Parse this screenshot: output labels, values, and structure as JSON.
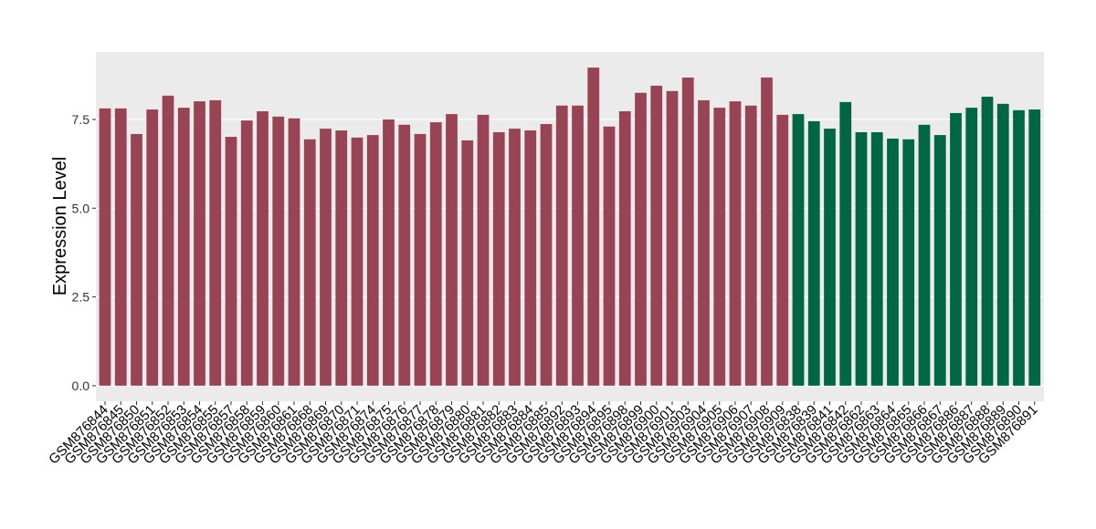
{
  "chart_data": {
    "type": "bar",
    "y_label": "Expression Level",
    "categories": [
      "GSM876844",
      "GSM876845",
      "GSM876850",
      "GSM876851",
      "GSM876852",
      "GSM876853",
      "GSM876854",
      "GSM876855",
      "GSM876857",
      "GSM876858",
      "GSM876859",
      "GSM876860",
      "GSM876861",
      "GSM876868",
      "GSM876869",
      "GSM876870",
      "GSM876871",
      "GSM876874",
      "GSM876875",
      "GSM876876",
      "GSM876877",
      "GSM876878",
      "GSM876879",
      "GSM876880",
      "GSM876881",
      "GSM876882",
      "GSM876883",
      "GSM876884",
      "GSM876885",
      "GSM876892",
      "GSM876893",
      "GSM876894",
      "GSM876895",
      "GSM876898",
      "GSM876899",
      "GSM876900",
      "GSM876901",
      "GSM876903",
      "GSM876904",
      "GSM876905",
      "GSM876906",
      "GSM876907",
      "GSM876908",
      "GSM876909",
      "GSM876838",
      "GSM876839",
      "GSM876841",
      "GSM876842",
      "GSM876862",
      "GSM876863",
      "GSM876864",
      "GSM876865",
      "GSM876866",
      "GSM876867",
      "GSM876886",
      "GSM876887",
      "GSM876888",
      "GSM876889",
      "GSM876890",
      "GSM876891"
    ],
    "values": [
      7.81,
      7.81,
      7.09,
      7.78,
      8.17,
      7.83,
      8.01,
      8.04,
      7.01,
      7.47,
      7.73,
      7.58,
      7.53,
      6.94,
      7.24,
      7.19,
      6.99,
      7.06,
      7.5,
      7.35,
      7.09,
      7.42,
      7.65,
      6.91,
      7.63,
      7.14,
      7.24,
      7.19,
      7.37,
      7.89,
      7.89,
      8.96,
      7.3,
      7.73,
      8.25,
      8.45,
      8.3,
      8.68,
      8.04,
      7.83,
      8.01,
      7.89,
      8.68,
      7.63,
      7.65,
      7.45,
      7.24,
      7.99,
      7.14,
      7.14,
      6.96,
      6.94,
      7.35,
      7.06,
      7.68,
      7.83,
      8.14,
      7.94,
      7.76,
      7.78
    ],
    "colors": [
      "#994455",
      "#994455",
      "#994455",
      "#994455",
      "#994455",
      "#994455",
      "#994455",
      "#994455",
      "#994455",
      "#994455",
      "#994455",
      "#994455",
      "#994455",
      "#994455",
      "#994455",
      "#994455",
      "#994455",
      "#994455",
      "#994455",
      "#994455",
      "#994455",
      "#994455",
      "#994455",
      "#994455",
      "#994455",
      "#994455",
      "#994455",
      "#994455",
      "#994455",
      "#994455",
      "#994455",
      "#994455",
      "#994455",
      "#994455",
      "#994455",
      "#994455",
      "#994455",
      "#994455",
      "#994455",
      "#994455",
      "#994455",
      "#994455",
      "#994455",
      "#994455",
      "#006644",
      "#006644",
      "#006644",
      "#006644",
      "#006644",
      "#006644",
      "#006644",
      "#006644",
      "#006644",
      "#006644",
      "#006644",
      "#006644",
      "#006644",
      "#006644",
      "#006644",
      "#006644"
    ],
    "ylim": [
      -0.44,
      9.4
    ],
    "yticks": [
      {
        "value": 0,
        "label": "0.0"
      },
      2.5,
      {
        "value": 5,
        "label": "5.0"
      },
      7.5
    ],
    "grid": true
  }
}
